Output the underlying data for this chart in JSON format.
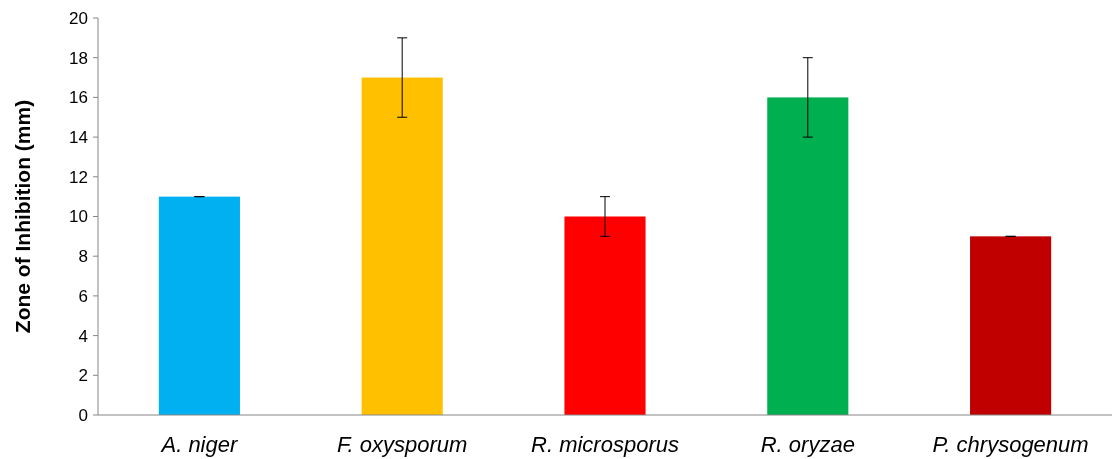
{
  "chart_data": {
    "type": "bar",
    "ylabel": "Zone of Inhibition (mm)",
    "categories": [
      "A. niger",
      "F. oxysporum",
      "R. microsporus",
      "R. oryzae",
      "P. chrysogenum"
    ],
    "values": [
      11,
      17,
      10,
      16,
      9
    ],
    "colors": [
      "#00b0f0",
      "#ffc000",
      "#ff0000",
      "#00b050",
      "#c00000"
    ],
    "errors": [
      0,
      2,
      1,
      2,
      0
    ],
    "ylim": [
      0,
      20
    ],
    "yticks": [
      0,
      2,
      4,
      6,
      8,
      10,
      12,
      14,
      16,
      18,
      20
    ],
    "grid": false
  }
}
